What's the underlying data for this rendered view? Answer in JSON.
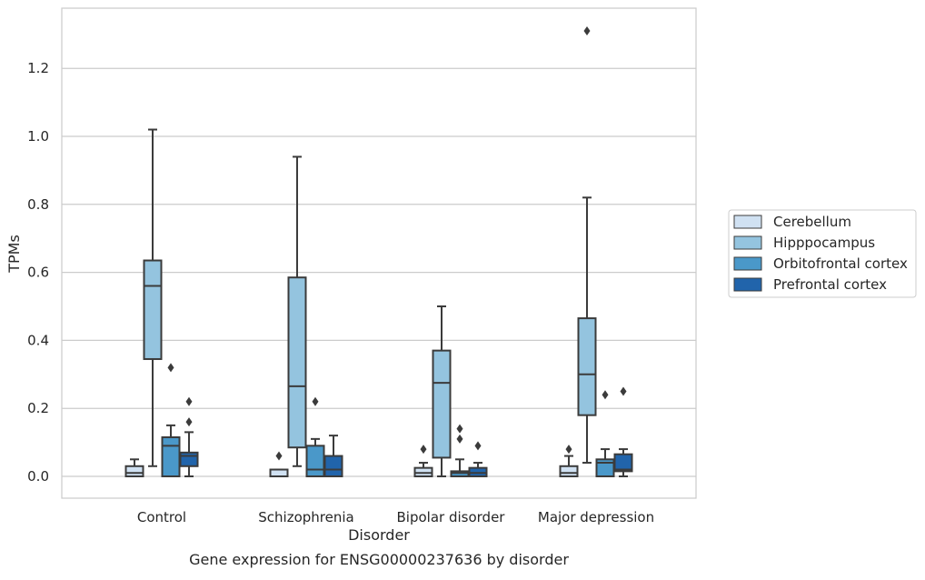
{
  "caption": "Gene expression for ENSG00000237636 by disorder",
  "chart_data": {
    "type": "box",
    "title": "",
    "xlabel": "Disorder",
    "ylabel": "TPMs",
    "ylim": [
      -0.065,
      1.38
    ],
    "yticks": [
      0.0,
      0.2,
      0.4,
      0.6,
      0.8,
      1.0,
      1.2
    ],
    "ytick_labels": [
      "0.0",
      "0.2",
      "0.4",
      "0.6",
      "0.8",
      "1.0",
      "1.2"
    ],
    "grid": "horizontal",
    "legend_placement": "right-outside",
    "categories": [
      "Control",
      "Schizophrenia",
      "Bipolar disorder",
      "Major depression"
    ],
    "series": [
      {
        "name": "Cerebellum",
        "color": "#d0e1f2",
        "boxes": [
          {
            "whislo": 0.0,
            "q1": 0.0,
            "med": 0.01,
            "q3": 0.03,
            "whishi": 0.05,
            "fliers": []
          },
          {
            "whislo": 0.0,
            "q1": 0.0,
            "med": 0.0,
            "q3": 0.02,
            "whishi": 0.02,
            "fliers": [
              0.06
            ]
          },
          {
            "whislo": 0.0,
            "q1": 0.0,
            "med": 0.01,
            "q3": 0.025,
            "whishi": 0.04,
            "fliers": [
              0.08
            ]
          },
          {
            "whislo": 0.0,
            "q1": 0.0,
            "med": 0.01,
            "q3": 0.03,
            "whishi": 0.06,
            "fliers": [
              0.08
            ]
          }
        ]
      },
      {
        "name": "Hipppocampus",
        "color": "#94c4df",
        "boxes": [
          {
            "whislo": 0.03,
            "q1": 0.345,
            "med": 0.56,
            "q3": 0.635,
            "whishi": 1.02,
            "fliers": []
          },
          {
            "whislo": 0.03,
            "q1": 0.085,
            "med": 0.265,
            "q3": 0.585,
            "whishi": 0.94,
            "fliers": []
          },
          {
            "whislo": 0.0,
            "q1": 0.055,
            "med": 0.275,
            "q3": 0.37,
            "whishi": 0.5,
            "fliers": []
          },
          {
            "whislo": 0.04,
            "q1": 0.18,
            "med": 0.3,
            "q3": 0.465,
            "whishi": 0.82,
            "fliers": [
              1.31
            ]
          }
        ]
      },
      {
        "name": "Orbitofrontal cortex",
        "color": "#4a98c9",
        "boxes": [
          {
            "whislo": 0.0,
            "q1": 0.0,
            "med": 0.09,
            "q3": 0.115,
            "whishi": 0.15,
            "fliers": [
              0.32
            ]
          },
          {
            "whislo": 0.0,
            "q1": 0.0,
            "med": 0.02,
            "q3": 0.09,
            "whishi": 0.11,
            "fliers": [
              0.22
            ]
          },
          {
            "whislo": 0.0,
            "q1": 0.0,
            "med": 0.01,
            "q3": 0.015,
            "whishi": 0.05,
            "fliers": [
              0.11,
              0.14
            ]
          },
          {
            "whislo": 0.0,
            "q1": 0.0,
            "med": 0.04,
            "q3": 0.05,
            "whishi": 0.08,
            "fliers": [
              0.24
            ]
          }
        ]
      },
      {
        "name": "Prefrontal cortex",
        "color": "#2164ab",
        "boxes": [
          {
            "whislo": 0.0,
            "q1": 0.03,
            "med": 0.06,
            "q3": 0.07,
            "whishi": 0.13,
            "fliers": [
              0.16,
              0.22
            ]
          },
          {
            "whislo": 0.0,
            "q1": 0.0,
            "med": 0.02,
            "q3": 0.06,
            "whishi": 0.12,
            "fliers": []
          },
          {
            "whislo": 0.0,
            "q1": 0.0,
            "med": 0.01,
            "q3": 0.025,
            "whishi": 0.04,
            "fliers": [
              0.09
            ]
          },
          {
            "whislo": 0.0,
            "q1": 0.015,
            "med": 0.02,
            "q3": 0.065,
            "whishi": 0.08,
            "fliers": [
              0.25
            ]
          }
        ]
      }
    ]
  }
}
